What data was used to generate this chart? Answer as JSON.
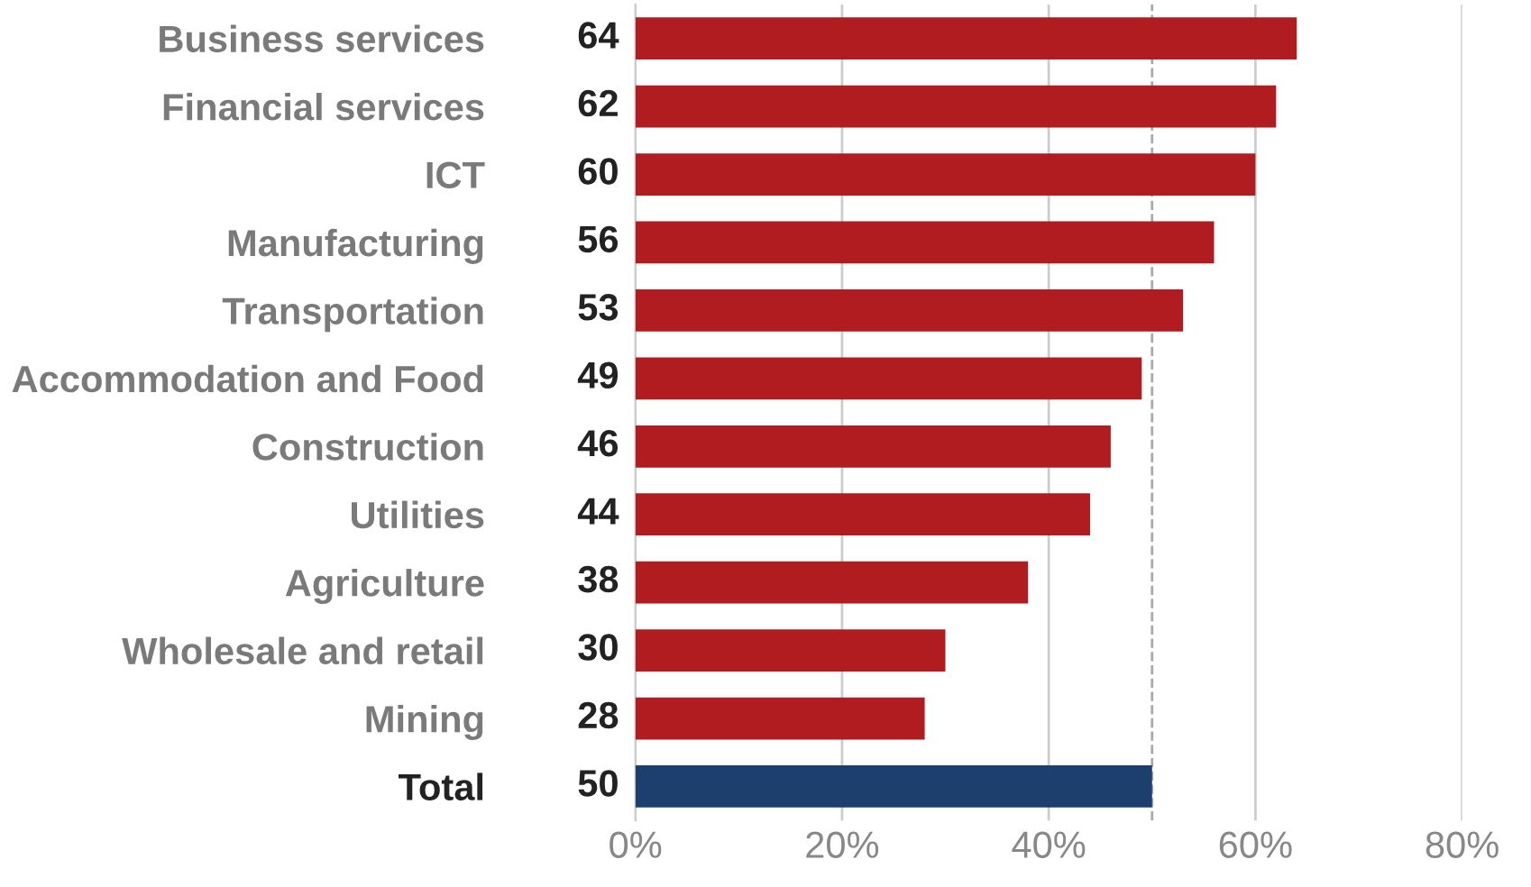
{
  "chart_data": {
    "type": "bar",
    "orientation": "horizontal",
    "categories": [
      "Business services",
      "Financial services",
      "ICT",
      "Manufacturing",
      "Transportation",
      "Accommodation and Food",
      "Construction",
      "Utilities",
      "Agriculture",
      "Wholesale and retail",
      "Mining",
      "Total"
    ],
    "values": [
      64,
      62,
      60,
      56,
      53,
      49,
      46,
      44,
      38,
      30,
      28,
      50
    ],
    "colors": [
      "#b01c1f",
      "#b01c1f",
      "#b01c1f",
      "#b01c1f",
      "#b01c1f",
      "#b01c1f",
      "#b01c1f",
      "#b01c1f",
      "#b01c1f",
      "#b01c1f",
      "#b01c1f",
      "#1c3f6e"
    ],
    "xlim": [
      0,
      80
    ],
    "xticks": [
      {
        "value": 0,
        "label": "0%"
      },
      {
        "value": 20,
        "label": "20%"
      },
      {
        "value": 40,
        "label": "40%"
      },
      {
        "value": 60,
        "label": "60%"
      },
      {
        "value": 80,
        "label": "80%"
      }
    ],
    "ref_lines": [
      {
        "axis": "x",
        "value": 50,
        "line_style": "dashed",
        "color": "#aaaaaa"
      }
    ],
    "grid": "x",
    "data_labels": true,
    "legend": false
  }
}
